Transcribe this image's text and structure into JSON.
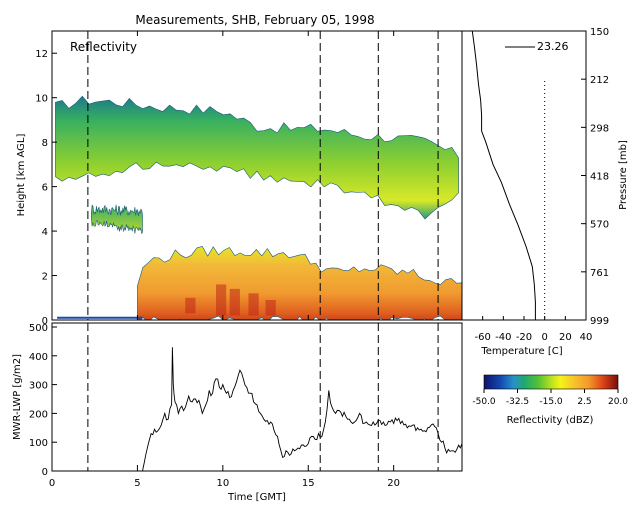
{
  "title": "Measurements, SHB, February 05, 1998",
  "colors": {
    "background": "#ffffff",
    "axes": "#000000"
  },
  "chart_data": [
    {
      "id": "reflectivity",
      "type": "heatmap",
      "label": "Reflectivity",
      "ylabel": "Height [km AGL]",
      "xlim": [
        0,
        24
      ],
      "ylim": [
        0,
        13
      ],
      "yticks": [
        "0",
        "2",
        "4",
        "6",
        "8",
        "10",
        "12"
      ],
      "xticks": [
        0,
        5,
        10,
        15,
        20
      ],
      "dashed_times": [
        2.1,
        15.7,
        19.1,
        22.6
      ],
      "colorbar": {
        "min": -50.0,
        "max": 20.0,
        "ticks": [
          "-50.0",
          "-32.5",
          "-15.0",
          "2.5",
          "20.0"
        ],
        "label": "Reflectivity (dBZ)"
      },
      "cloud_layers": [
        {
          "name": "upper",
          "x_start": 0.2,
          "x_end": 23.8,
          "base": [
            [
              0.2,
              6.3
            ],
            [
              2,
              6.4
            ],
            [
              4,
              6.8
            ],
            [
              6,
              7.0
            ],
            [
              8,
              7.1
            ],
            [
              10,
              6.8
            ],
            [
              12,
              6.5
            ],
            [
              14,
              6.2
            ],
            [
              16,
              6.1
            ],
            [
              18,
              5.7
            ],
            [
              20,
              5.2
            ],
            [
              22,
              4.6
            ],
            [
              23.8,
              5.8
            ]
          ],
          "top": [
            [
              0.2,
              9.6
            ],
            [
              2,
              9.9
            ],
            [
              4,
              9.8
            ],
            [
              6,
              9.6
            ],
            [
              8,
              9.5
            ],
            [
              10,
              9.4
            ],
            [
              12,
              8.7
            ],
            [
              14,
              8.6
            ],
            [
              16,
              8.6
            ],
            [
              18,
              8.3
            ],
            [
              20,
              8.2
            ],
            [
              22,
              8.0
            ],
            [
              23.8,
              7.4
            ]
          ]
        },
        {
          "name": "mid",
          "x_start": 2.3,
          "x_end": 5.3,
          "base": [
            [
              2.3,
              4.4
            ],
            [
              5.3,
              4.0
            ]
          ],
          "top": [
            [
              2.3,
              5.0
            ],
            [
              5.3,
              4.9
            ]
          ]
        },
        {
          "name": "low",
          "x_start": 5.0,
          "x_end": 24,
          "base": [
            [
              5,
              0
            ],
            [
              24,
              0
            ]
          ],
          "top": [
            [
              5,
              1.6
            ],
            [
              5.5,
              2.6
            ],
            [
              7,
              2.9
            ],
            [
              9,
              3.1
            ],
            [
              11,
              3.1
            ],
            [
              13,
              3.0
            ],
            [
              14,
              3.0
            ],
            [
              15,
              2.7
            ],
            [
              16,
              2.3
            ],
            [
              17,
              2.1
            ],
            [
              18,
              2.3
            ],
            [
              19,
              2.3
            ],
            [
              20,
              2.2
            ],
            [
              21,
              2.1
            ],
            [
              22,
              1.9
            ],
            [
              23,
              1.6
            ],
            [
              24,
              1.9
            ]
          ]
        }
      ]
    },
    {
      "id": "sounding",
      "type": "line",
      "xlabel": "Temperature [C]",
      "ylabel": "Pressure [mb]",
      "pressure_ticks": [
        "150",
        "212",
        "298",
        "418",
        "570",
        "761",
        "999"
      ],
      "temp_ticks": [
        "-60",
        "-40",
        "-20",
        "0",
        "20",
        "40"
      ],
      "xlim": [
        -80,
        40
      ],
      "legend_value": "23.26",
      "profile": [
        [
          -70,
          13.0
        ],
        [
          -68,
          12.3
        ],
        [
          -66,
          11.5
        ],
        [
          -64,
          10.6
        ],
        [
          -62,
          9.9
        ],
        [
          -61,
          9.2
        ],
        [
          -61,
          8.5
        ],
        [
          -57,
          8.0
        ],
        [
          -50,
          7.0
        ],
        [
          -42,
          6.2
        ],
        [
          -34,
          5.2
        ],
        [
          -26,
          4.3
        ],
        [
          -18,
          3.3
        ],
        [
          -12,
          2.4
        ],
        [
          -10,
          1.6
        ],
        [
          -9,
          0.8
        ],
        [
          -9,
          0
        ]
      ],
      "zero_line_temp": 0
    },
    {
      "id": "lwp",
      "type": "line",
      "xlabel": "Time [GMT]",
      "ylabel": "MWR-LWP [g/m2]",
      "xlim": [
        0,
        24
      ],
      "ylim": [
        0,
        500
      ],
      "yticks": [
        "0",
        "100",
        "200",
        "300",
        "400",
        "500"
      ],
      "xticks": [
        "0",
        "5",
        "10",
        "15",
        "20"
      ],
      "x": [
        5.3,
        5.5,
        5.8,
        6.0,
        6.2,
        6.4,
        6.6,
        6.8,
        7.0,
        7.05,
        7.1,
        7.2,
        7.4,
        7.6,
        7.8,
        8.0,
        8.2,
        8.4,
        8.6,
        8.8,
        9.0,
        9.2,
        9.4,
        9.6,
        9.8,
        10.0,
        10.2,
        10.4,
        10.6,
        10.8,
        11.0,
        11.2,
        11.4,
        11.6,
        11.8,
        12.0,
        12.2,
        12.4,
        12.6,
        12.8,
        13.0,
        13.2,
        13.4,
        13.6,
        13.8,
        14.0,
        14.2,
        14.4,
        14.6,
        14.8,
        15.0,
        15.2,
        15.4,
        15.6,
        15.8,
        16.0,
        16.2,
        16.4,
        16.6,
        16.8,
        17.0,
        17.2,
        17.4,
        17.6,
        17.8,
        18.0,
        18.2,
        18.4,
        18.6,
        18.8,
        19.0,
        19.2,
        19.4,
        19.6,
        19.8,
        20.0,
        20.2,
        20.4,
        20.6,
        20.8,
        21.0,
        21.2,
        21.4,
        21.6,
        21.8,
        22.0,
        22.2,
        22.4,
        22.6,
        22.8,
        23.0,
        23.2,
        23.4,
        23.6,
        23.8,
        24.0
      ],
      "values": [
        0,
        60,
        130,
        145,
        140,
        160,
        200,
        180,
        230,
        430,
        300,
        240,
        200,
        225,
        220,
        260,
        240,
        250,
        245,
        200,
        230,
        280,
        270,
        320,
        290,
        300,
        270,
        255,
        280,
        310,
        350,
        320,
        290,
        270,
        240,
        230,
        200,
        180,
        175,
        170,
        140,
        120,
        70,
        50,
        65,
        60,
        70,
        80,
        90,
        85,
        95,
        120,
        110,
        130,
        120,
        170,
        280,
        220,
        200,
        210,
        190,
        190,
        180,
        165,
        175,
        200,
        165,
        170,
        160,
        170,
        165,
        175,
        170,
        160,
        170,
        165,
        175,
        165,
        160,
        150,
        155,
        160,
        150,
        145,
        140,
        150,
        160,
        155,
        130,
        100,
        80,
        75,
        70,
        65,
        90,
        95
      ]
    }
  ]
}
